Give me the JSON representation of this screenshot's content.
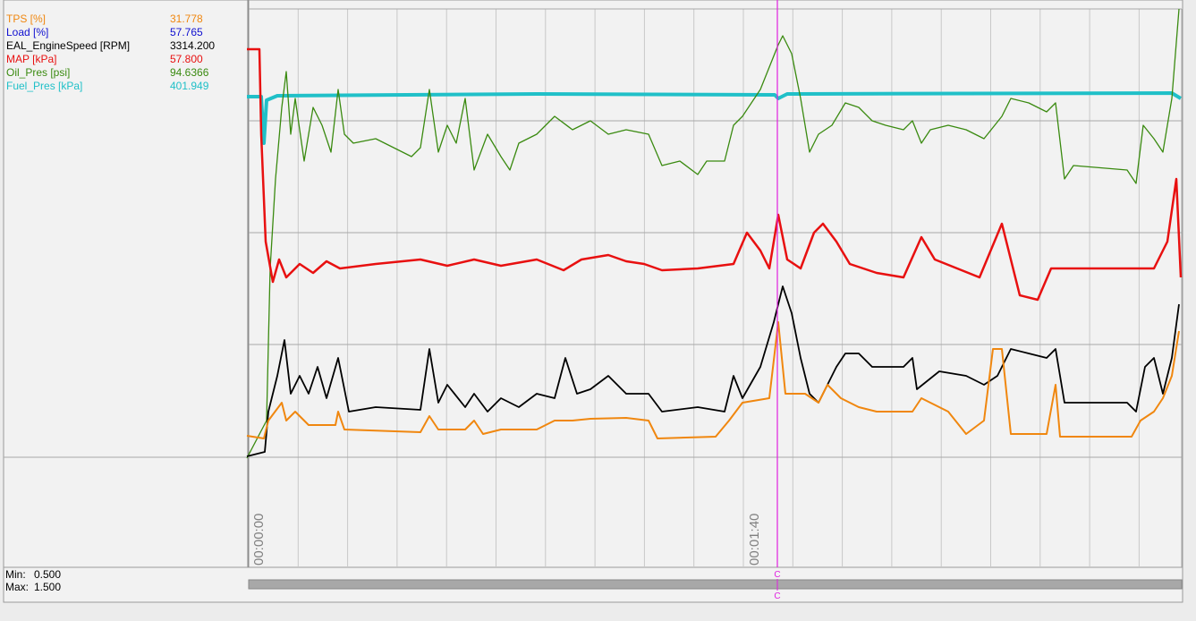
{
  "legend": [
    {
      "name": "TPS [%]",
      "value": "31.778",
      "color": "#f0870f"
    },
    {
      "name": "Load [%]",
      "value": "57.765",
      "color": "#1010d0"
    },
    {
      "name": "EAL_EngineSpeed [RPM]",
      "value": "3314.200",
      "color": "#000000"
    },
    {
      "name": "MAP [kPa]",
      "value": "57.800",
      "color": "#e81010"
    },
    {
      "name": "Oil_Pres [psi]",
      "value": "94.6366",
      "color": "#3a8a10"
    },
    {
      "name": "Fuel_Pres [kPa]",
      "value": "401.949",
      "color": "#20c0c8"
    }
  ],
  "time_labels": [
    "00:00:00",
    "00:01:40"
  ],
  "scale": {
    "min_label": "Min:",
    "min": "0.500",
    "max_label": "Max:",
    "max": "1.500"
  },
  "cursor_label": "C"
}
